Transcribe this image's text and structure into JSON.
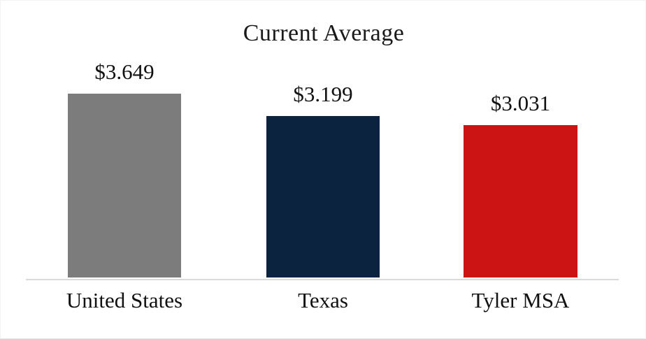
{
  "chart_data": {
    "type": "bar",
    "title": "Current Average",
    "categories": [
      "United States",
      "Texas",
      "Tyler MSA"
    ],
    "values": [
      3.649,
      3.199,
      3.031
    ],
    "value_labels": [
      "$3.649",
      "$3.199",
      "$3.031"
    ],
    "colors": [
      "#7C7C7C",
      "#0C2340",
      "#CD1414"
    ],
    "xlabel": "",
    "ylabel": "",
    "ylim": [
      0,
      3.649
    ],
    "grid": false,
    "legend": false,
    "axis_line_color": "#D9D9D9",
    "text_color": "#1A1A1A"
  }
}
